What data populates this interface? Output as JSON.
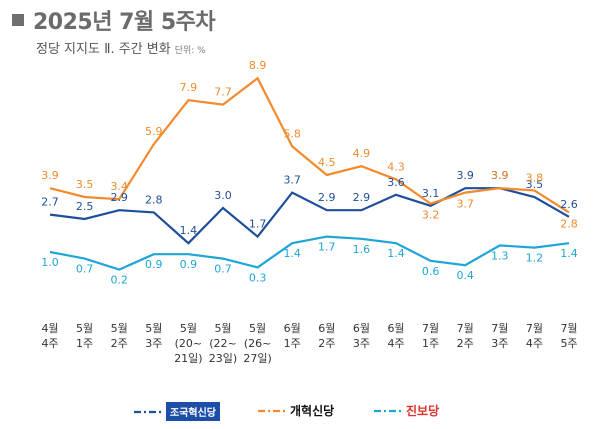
{
  "header": {
    "title": "2025년 7월 5주차",
    "subtitle": "정당 지지도 Ⅱ. 주간 변화",
    "unit": "단위: %"
  },
  "chart_data": {
    "type": "line",
    "categories": [
      [
        "4월",
        "4주"
      ],
      [
        "5월",
        "1주"
      ],
      [
        "5월",
        "2주"
      ],
      [
        "5월",
        "3주"
      ],
      [
        "5월",
        "(20~",
        "21일)"
      ],
      [
        "5월",
        "(22~",
        "23일)"
      ],
      [
        "5월",
        "(26~",
        "27일)"
      ],
      [
        "6월",
        "1주"
      ],
      [
        "6월",
        "2주"
      ],
      [
        "6월",
        "3주"
      ],
      [
        "6월",
        "4주"
      ],
      [
        "7월",
        "1주"
      ],
      [
        "7월",
        "2주"
      ],
      [
        "7월",
        "3주"
      ],
      [
        "7월",
        "4주"
      ],
      [
        "7월",
        "5주"
      ]
    ],
    "series": [
      {
        "name": "조국혁신당",
        "color": "#1f4e9c",
        "values": [
          2.7,
          2.5,
          2.9,
          2.8,
          1.4,
          3.0,
          1.7,
          3.7,
          2.9,
          2.9,
          3.6,
          3.1,
          3.9,
          3.9,
          3.5,
          2.6
        ]
      },
      {
        "name": "개혁신당",
        "color": "#f28a2e",
        "values": [
          3.9,
          3.5,
          3.4,
          5.9,
          7.9,
          7.7,
          8.9,
          5.8,
          4.5,
          4.9,
          4.3,
          3.2,
          3.7,
          3.9,
          3.8,
          2.8
        ]
      },
      {
        "name": "진보당",
        "color": "#1fa5d6",
        "values": [
          1.0,
          0.7,
          0.2,
          0.9,
          0.9,
          0.7,
          0.3,
          1.4,
          1.7,
          1.6,
          1.4,
          0.6,
          0.4,
          1.3,
          1.2,
          1.4
        ]
      }
    ]
  },
  "legend": [
    "조국혁신당",
    "개혁신당",
    "진보당"
  ]
}
